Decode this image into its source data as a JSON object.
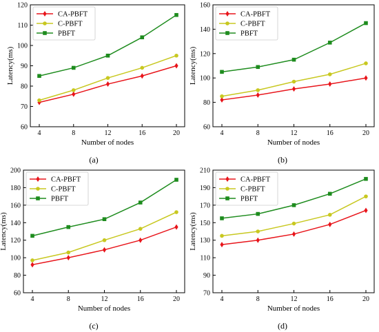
{
  "colors": {
    "CA-PBFT": "#e8141a",
    "C-PBFT": "#c8c820",
    "PBFT": "#1e8c1e"
  },
  "legend_placement": "top-left",
  "chart_data": [
    {
      "type": "line",
      "panel_label": "(a)",
      "xlabel": "Number of nodes",
      "ylabel": "Latency(ms)",
      "categories": [
        4,
        8,
        12,
        16,
        20
      ],
      "ylim": [
        60,
        120
      ],
      "yticks": [
        60,
        70,
        80,
        90,
        100,
        110,
        120
      ],
      "grid": false,
      "series": [
        {
          "name": "CA-PBFT",
          "marker": "diamond",
          "values": [
            72,
            76,
            81,
            85,
            90
          ]
        },
        {
          "name": "C-PBFT",
          "marker": "circle",
          "values": [
            73,
            78,
            84,
            89,
            95
          ]
        },
        {
          "name": "PBFT",
          "marker": "square",
          "values": [
            85,
            89,
            95,
            104,
            115
          ]
        }
      ]
    },
    {
      "type": "line",
      "panel_label": "(b)",
      "xlabel": "Number of nodes",
      "ylabel": "Latency(ms)",
      "categories": [
        4,
        8,
        12,
        16,
        20
      ],
      "ylim": [
        60,
        160
      ],
      "yticks": [
        60,
        80,
        100,
        120,
        140,
        160
      ],
      "grid": false,
      "series": [
        {
          "name": "CA-PBFT",
          "marker": "diamond",
          "values": [
            82,
            86,
            91,
            95,
            100
          ]
        },
        {
          "name": "C-PBFT",
          "marker": "circle",
          "values": [
            85,
            90,
            97,
            103,
            112
          ]
        },
        {
          "name": "PBFT",
          "marker": "square",
          "values": [
            105,
            109,
            115,
            129,
            145
          ]
        }
      ]
    },
    {
      "type": "line",
      "panel_label": "(c)",
      "xlabel": "Number of nodes",
      "ylabel": "Latency(ms)",
      "categories": [
        4,
        8,
        12,
        16,
        20
      ],
      "ylim": [
        60,
        200
      ],
      "yticks": [
        60,
        80,
        100,
        120,
        140,
        160,
        180,
        200
      ],
      "grid": false,
      "series": [
        {
          "name": "CA-PBFT",
          "marker": "diamond",
          "values": [
            92,
            100,
            109,
            120,
            135
          ]
        },
        {
          "name": "C-PBFT",
          "marker": "circle",
          "values": [
            97,
            106,
            120,
            133,
            152
          ]
        },
        {
          "name": "PBFT",
          "marker": "square",
          "values": [
            125,
            135,
            144,
            163,
            189
          ]
        }
      ]
    },
    {
      "type": "line",
      "panel_label": "(d)",
      "xlabel": "Number of nodes",
      "ylabel": "Latency(ms)",
      "categories": [
        4,
        8,
        12,
        16,
        20
      ],
      "ylim": [
        70,
        210
      ],
      "yticks": [
        70,
        90,
        110,
        130,
        150,
        170,
        190,
        210
      ],
      "grid": false,
      "series": [
        {
          "name": "CA-PBFT",
          "marker": "diamond",
          "values": [
            125,
            130,
            137,
            148,
            164
          ]
        },
        {
          "name": "C-PBFT",
          "marker": "circle",
          "values": [
            135,
            140,
            149,
            159,
            180
          ]
        },
        {
          "name": "PBFT",
          "marker": "square",
          "values": [
            155,
            160,
            170,
            183,
            200
          ]
        }
      ]
    }
  ]
}
